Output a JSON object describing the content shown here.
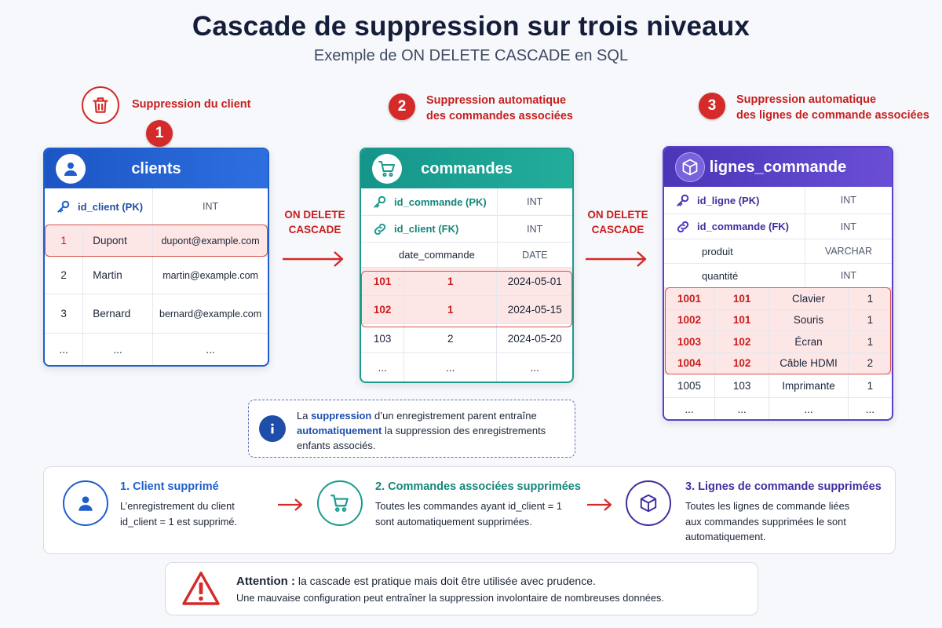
{
  "header": {
    "title": "Cascade de suppression sur trois niveaux",
    "subtitle": "Exemple de ON DELETE CASCADE en SQL"
  },
  "steps": [
    {
      "number": "1",
      "label": "Suppression du client",
      "icon": "trash-icon"
    },
    {
      "number": "2",
      "label_line1": "Suppression automatique",
      "label_line2": "des commandes associées"
    },
    {
      "number": "3",
      "label_line1": "Suppression automatique",
      "label_line2": "des lignes de commande associées"
    }
  ],
  "cascade_label_line1": "ON DELETE",
  "cascade_label_line2": "CASCADE",
  "clients": {
    "name": "clients",
    "icon": "user-icon",
    "color": "#1f5fcc",
    "columns": [
      {
        "name": "id_client (PK)",
        "type": "INT",
        "icon": "key-icon"
      }
    ],
    "rows": [
      {
        "id": "1",
        "name": "Dupont",
        "email": "dupont@example.com",
        "deleted": true
      },
      {
        "id": "2",
        "name": "Martin",
        "email": "martin@example.com",
        "deleted": false
      },
      {
        "id": "3",
        "name": "Bernard",
        "email": "bernard@example.com",
        "deleted": false
      },
      {
        "id": "...",
        "name": "...",
        "email": "...",
        "deleted": false
      }
    ]
  },
  "commandes": {
    "name": "commandes",
    "icon": "cart-icon",
    "color": "#1a9b8c",
    "columns": [
      {
        "name": "id_commande (PK)",
        "type": "INT",
        "icon": "key-icon"
      },
      {
        "name": "id_client (FK)",
        "type": "INT",
        "icon": "link-icon"
      },
      {
        "name": "date_commande",
        "type": "DATE",
        "icon": ""
      }
    ],
    "rows": [
      {
        "id": "101",
        "client": "1",
        "date": "2024-05-01",
        "deleted": true
      },
      {
        "id": "102",
        "client": "1",
        "date": "2024-05-15",
        "deleted": true
      },
      {
        "id": "103",
        "client": "2",
        "date": "2024-05-20",
        "deleted": false
      },
      {
        "id": "...",
        "client": "...",
        "date": "...",
        "deleted": false
      }
    ]
  },
  "lignes": {
    "name": "lignes_commande",
    "icon": "box-icon",
    "color": "#5b3fc4",
    "columns": [
      {
        "name": "id_ligne (PK)",
        "type": "INT",
        "icon": "key-icon"
      },
      {
        "name": "id_commande (FK)",
        "type": "INT",
        "icon": "link-icon"
      },
      {
        "name": "produit",
        "type": "VARCHAR",
        "icon": ""
      },
      {
        "name": "quantité",
        "type": "INT",
        "icon": ""
      }
    ],
    "rows": [
      {
        "id": "1001",
        "commande": "101",
        "produit": "Clavier",
        "qte": "1",
        "deleted": true
      },
      {
        "id": "1002",
        "commande": "101",
        "produit": "Souris",
        "qte": "1",
        "deleted": true
      },
      {
        "id": "1003",
        "commande": "102",
        "produit": "Écran",
        "qte": "1",
        "deleted": true
      },
      {
        "id": "1004",
        "commande": "102",
        "produit": "Câble HDMI",
        "qte": "2",
        "deleted": true
      },
      {
        "id": "1005",
        "commande": "103",
        "produit": "Imprimante",
        "qte": "1",
        "deleted": false
      },
      {
        "id": "...",
        "commande": "...",
        "produit": "...",
        "qte": "...",
        "deleted": false
      }
    ]
  },
  "note": {
    "icon": "info-icon",
    "part1": "La ",
    "bold1": "suppression",
    "part2": " d’un enregistrement parent entraîne ",
    "bold2": "automatiquement",
    "part3": " la suppression des enregistrements enfants associés."
  },
  "summary": [
    {
      "title": "1. Client supprimé",
      "line1": "L’enregistrement du client",
      "line2": "id_client = 1 est supprimé.",
      "line3": "",
      "icon": "user-icon",
      "color": "#1f5fcc"
    },
    {
      "title": "2. Commandes associées supprimées",
      "line1": "Toutes les commandes ayant id_client = 1",
      "line2": "sont automatiquement supprimées.",
      "line3": "",
      "icon": "cart-icon",
      "color": "#1a9b8c"
    },
    {
      "title": "3. Lignes de commande supprimées",
      "line1": "Toutes les lignes de commande liées",
      "line2": "aux commandes supprimées le sont",
      "line3": "automatiquement.",
      "icon": "box-icon",
      "color": "#3e2f9e"
    }
  ],
  "warning": {
    "icon": "warning-icon",
    "bold": "Attention :",
    "line1": " la cascade est pratique mais doit être utilisée avec prudence.",
    "line2": "Une mauvaise configuration peut entraîner la suppression involontaire de nombreuses données."
  }
}
